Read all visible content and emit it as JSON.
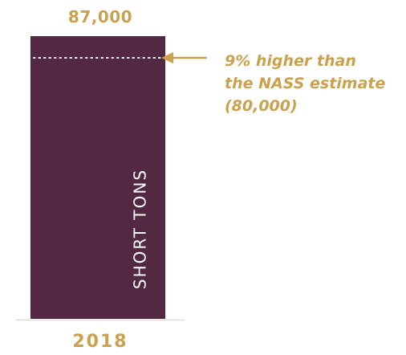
{
  "chart_data": {
    "type": "bar",
    "categories": [
      "2018"
    ],
    "values": [
      87000
    ],
    "value_labels": [
      "87,000"
    ],
    "unit_label": "SHORT TONS",
    "reference": {
      "value": 80000,
      "line_style": "dotted",
      "annotation_lines": [
        "9% higher than",
        "the NASS estimate",
        "(80,000)"
      ]
    },
    "ylim": [
      0,
      87000
    ],
    "grid": false,
    "legend": "none"
  },
  "colors": {
    "bar": "#532842",
    "accent": "#c9a14f",
    "reference_line": "#ffffff",
    "baseline": "#dddddd"
  }
}
